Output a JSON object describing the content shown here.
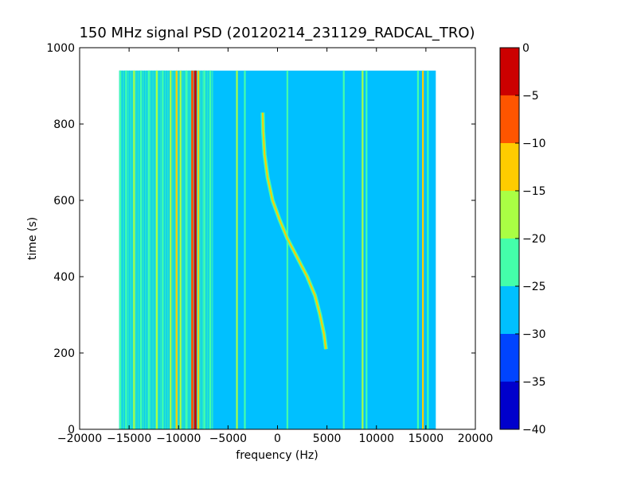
{
  "chart_data": {
    "type": "heatmap",
    "title": "150 MHz signal PSD (20120214_231129_RADCAL_TRO)",
    "xlabel": "frequency (Hz)",
    "ylabel": "time (s)",
    "xlim": [
      -20000,
      20000
    ],
    "ylim": [
      0,
      1000
    ],
    "x_ticks": [
      {
        "value": -20000,
        "label": "−20000"
      },
      {
        "value": -15000,
        "label": "−15000"
      },
      {
        "value": -10000,
        "label": "−10000"
      },
      {
        "value": -5000,
        "label": "−5000"
      },
      {
        "value": 0,
        "label": "0"
      },
      {
        "value": 5000,
        "label": "5000"
      },
      {
        "value": 10000,
        "label": "10000"
      },
      {
        "value": 15000,
        "label": "15000"
      },
      {
        "value": 20000,
        "label": "20000"
      }
    ],
    "y_ticks": [
      {
        "value": 0,
        "label": "0"
      },
      {
        "value": 200,
        "label": "200"
      },
      {
        "value": 400,
        "label": "400"
      },
      {
        "value": 600,
        "label": "600"
      },
      {
        "value": 800,
        "label": "800"
      },
      {
        "value": 1000,
        "label": "1000"
      }
    ],
    "data_extent": {
      "x": [
        -16000,
        16000
      ],
      "y": [
        0,
        940
      ]
    },
    "background_level": -27.5,
    "colorbar": {
      "range": [
        -40,
        0
      ],
      "levels": [
        {
          "from": -40,
          "to": -35,
          "color": "#0000cc"
        },
        {
          "from": -35,
          "to": -30,
          "color": "#0044ff"
        },
        {
          "from": -30,
          "to": -25,
          "color": "#00c0ff"
        },
        {
          "from": -25,
          "to": -20,
          "color": "#44ffaa"
        },
        {
          "from": -20,
          "to": -15,
          "color": "#aaff44"
        },
        {
          "from": -15,
          "to": -10,
          "color": "#ffcc00"
        },
        {
          "from": -10,
          "to": -5,
          "color": "#ff5500"
        },
        {
          "from": -5,
          "to": 0,
          "color": "#cc0000"
        }
      ],
      "ticks": [
        {
          "value": 0,
          "label": "0"
        },
        {
          "value": -5,
          "label": "−5"
        },
        {
          "value": -10,
          "label": "−10"
        },
        {
          "value": -15,
          "label": "−15"
        },
        {
          "value": -20,
          "label": "−20"
        },
        {
          "value": -25,
          "label": "−25"
        },
        {
          "value": -30,
          "label": "−30"
        },
        {
          "value": -35,
          "label": "−35"
        },
        {
          "value": -40,
          "label": "−40"
        }
      ]
    },
    "noise_band": {
      "x": [
        -16000,
        -6500
      ],
      "level": -22.5
    },
    "vertical_lines": [
      {
        "x": -15900,
        "level": -22.5
      },
      {
        "x": -15300,
        "level": -22.5
      },
      {
        "x": -14500,
        "level": -17.5
      },
      {
        "x": -13800,
        "level": -22.5
      },
      {
        "x": -13000,
        "level": -22.5
      },
      {
        "x": -12200,
        "level": -17.5
      },
      {
        "x": -11600,
        "level": -22.5
      },
      {
        "x": -10800,
        "level": -17.5
      },
      {
        "x": -10200,
        "level": -12.5
      },
      {
        "x": -9800,
        "level": -17.5
      },
      {
        "x": -9200,
        "level": -22.5
      },
      {
        "x": -8600,
        "level": -7.5
      },
      {
        "x": -8300,
        "level": -2.5
      },
      {
        "x": -8000,
        "level": -12.5
      },
      {
        "x": -7400,
        "level": -22.5
      },
      {
        "x": -6800,
        "level": -22.5
      },
      {
        "x": -4100,
        "level": -17.5
      },
      {
        "x": -3300,
        "level": -22.5
      },
      {
        "x": 1000,
        "level": -22.5
      },
      {
        "x": 6700,
        "level": -22.5
      },
      {
        "x": 8600,
        "level": -17.5
      },
      {
        "x": 9000,
        "level": -22.5
      },
      {
        "x": 14200,
        "level": -22.5
      },
      {
        "x": 14700,
        "level": -12.5
      },
      {
        "x": 15200,
        "level": -22.5
      }
    ],
    "drift_curve": {
      "level": -12.5,
      "points": [
        {
          "time": 830,
          "freq": -1500
        },
        {
          "time": 780,
          "freq": -1450
        },
        {
          "time": 720,
          "freq": -1300
        },
        {
          "time": 660,
          "freq": -1000
        },
        {
          "time": 600,
          "freq": -500
        },
        {
          "time": 550,
          "freq": 200
        },
        {
          "time": 500,
          "freq": 1000
        },
        {
          "time": 450,
          "freq": 2000
        },
        {
          "time": 400,
          "freq": 3000
        },
        {
          "time": 350,
          "freq": 3800
        },
        {
          "time": 300,
          "freq": 4300
        },
        {
          "time": 250,
          "freq": 4700
        },
        {
          "time": 210,
          "freq": 4900
        }
      ]
    }
  }
}
